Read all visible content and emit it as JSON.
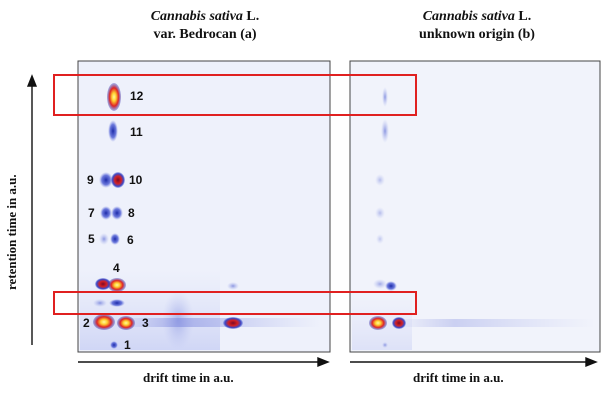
{
  "panels": [
    {
      "title_italic": "Cannabis sativa",
      "title_suffix": " L.",
      "subtitle": "var. Bedrocan (a)",
      "xlabel": "drift time in a.u."
    },
    {
      "title_italic": "Cannabis sativa",
      "title_suffix": " L.",
      "subtitle": "unknown origin (b)",
      "xlabel": "drift time in a.u."
    }
  ],
  "ylabel": "retention time in a.u.",
  "peaks": [
    "1",
    "2",
    "3",
    "4",
    "5",
    "6",
    "7",
    "8",
    "9",
    "10",
    "11",
    "12"
  ],
  "colors": {
    "background": "#f2f4fb",
    "frame": "#444444",
    "highlight_box": "#e02020",
    "spot_blue": "#3646c8",
    "spot_red": "#d81e1e",
    "spot_yellow": "#ffe640"
  }
}
